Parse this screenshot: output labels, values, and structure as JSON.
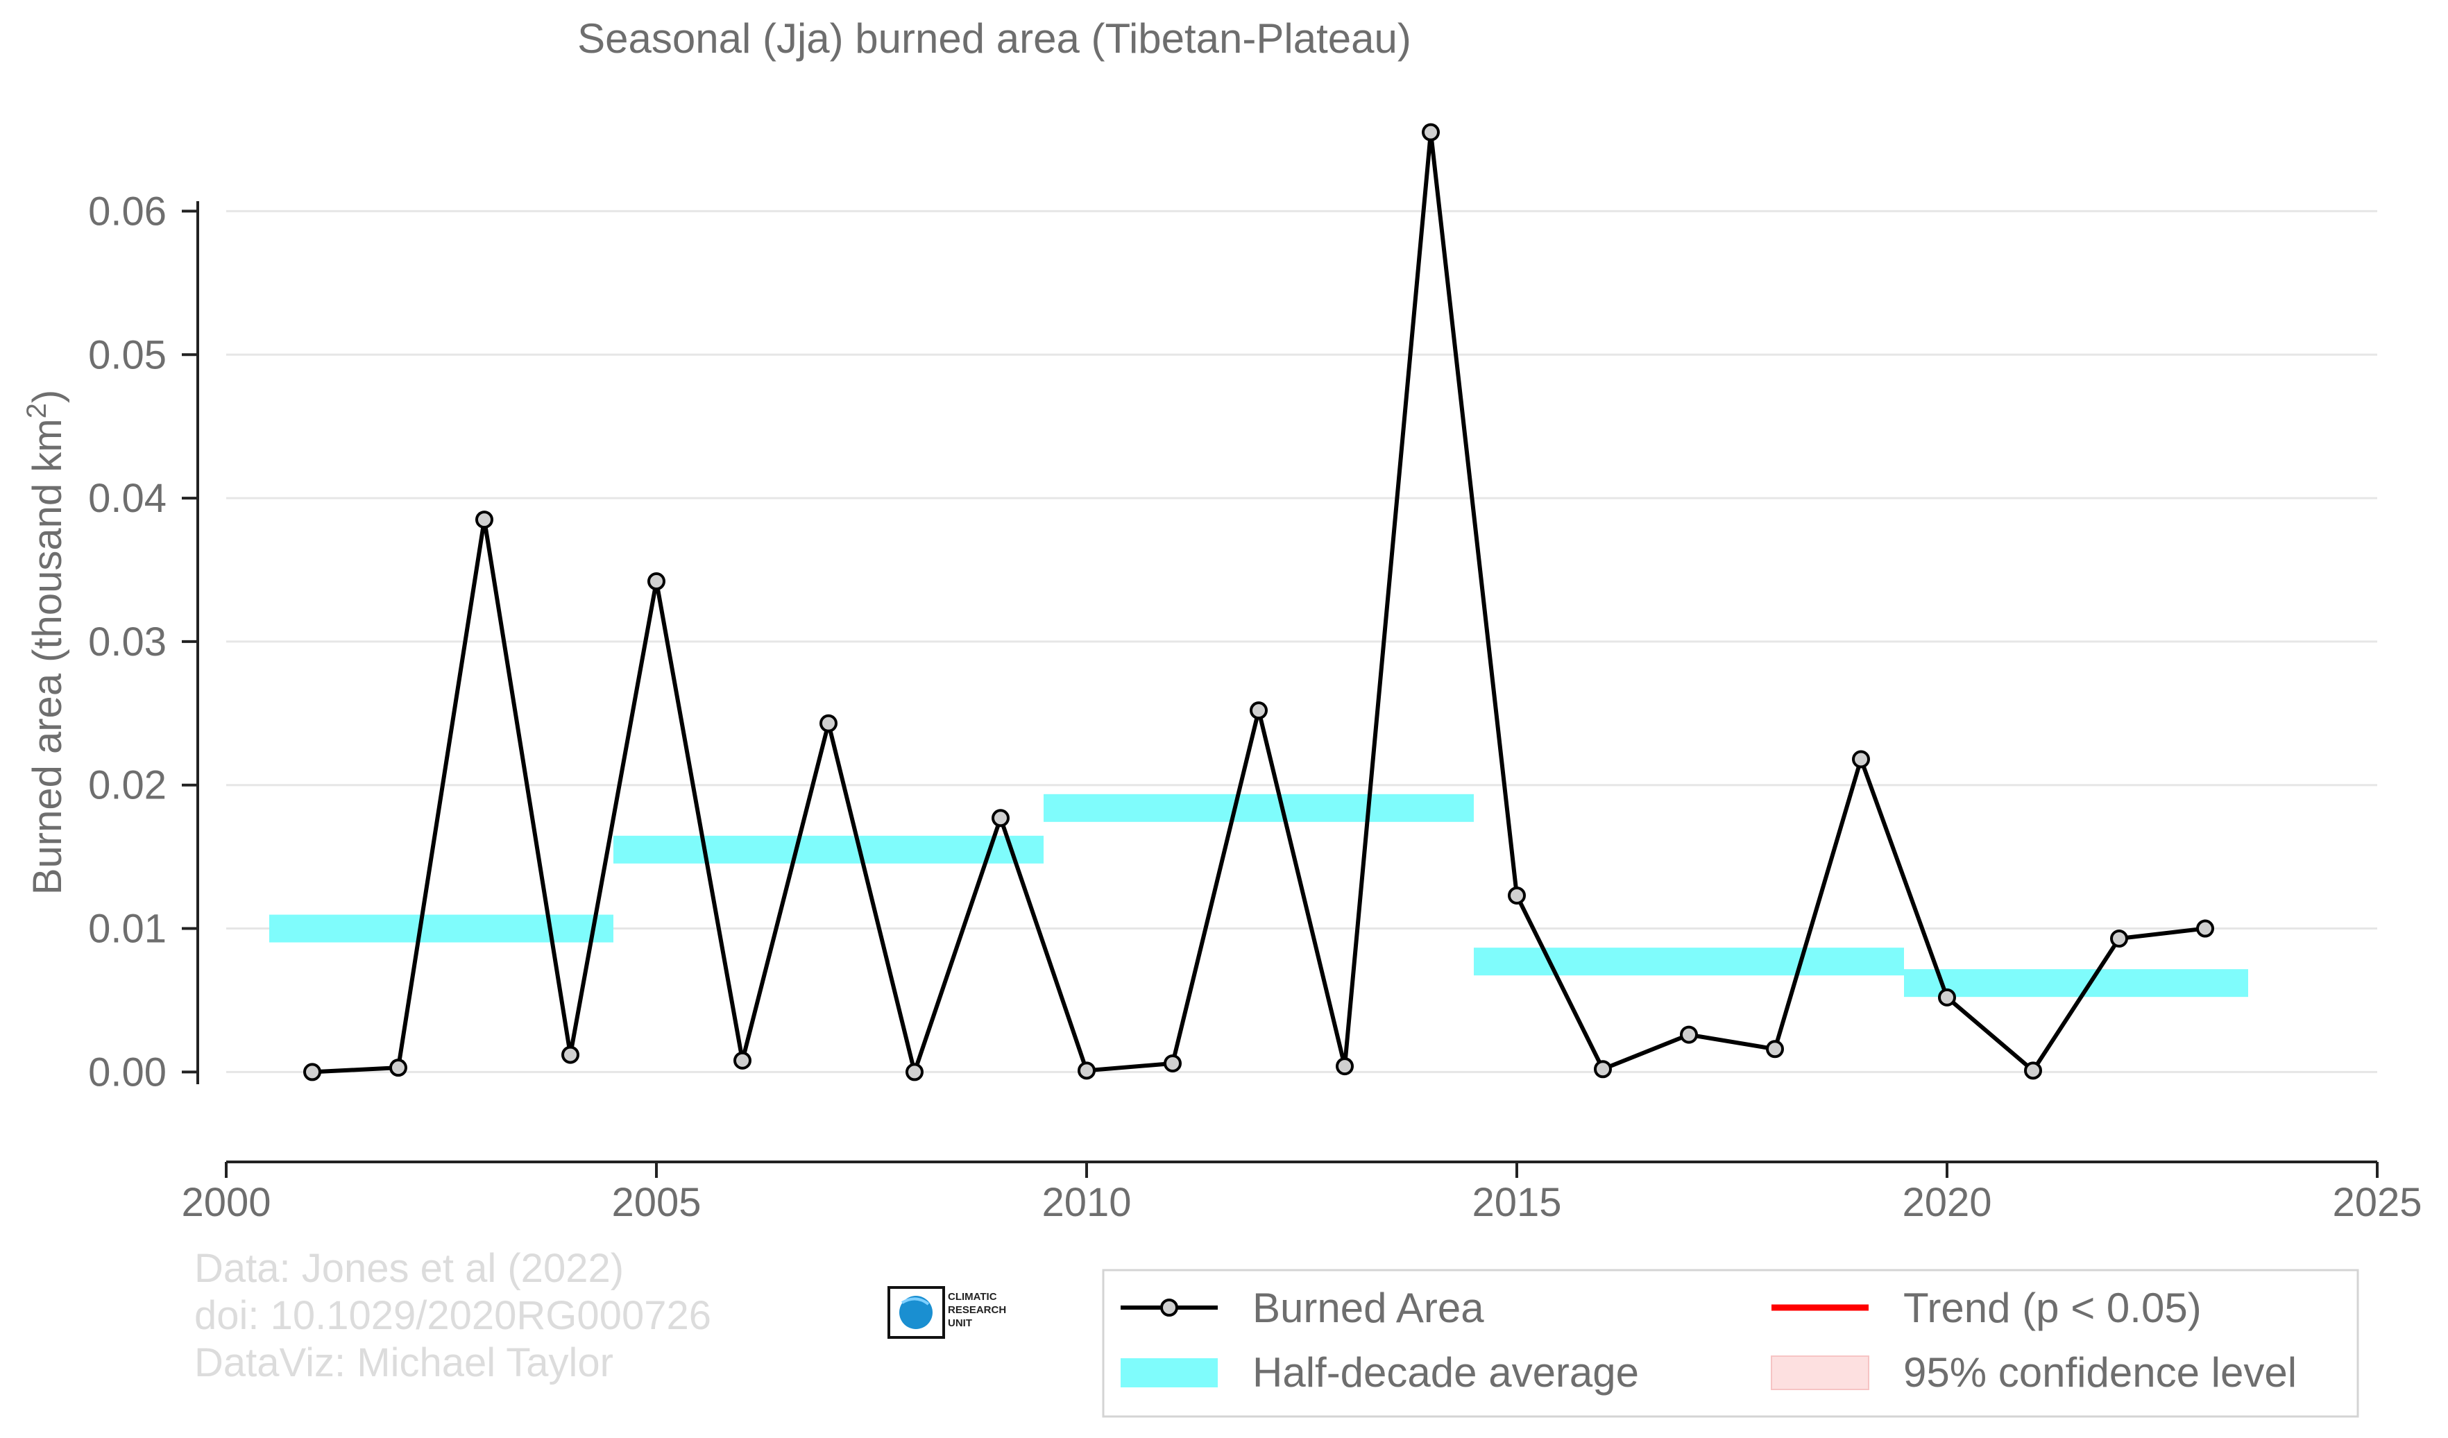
{
  "chart_data": {
    "type": "line",
    "title": "Seasonal (Jja) burned area (Tibetan-Plateau)",
    "xlabel": "",
    "ylabel": "Burned area (thousand km",
    "ylabel_sup": "2",
    "ylabel_close": ")",
    "xlim": [
      2000,
      2025
    ],
    "ylim": [
      -0.0053,
      0.0665
    ],
    "x_ticks": [
      2000,
      2005,
      2010,
      2015,
      2020,
      2025
    ],
    "x_tick_labels": [
      "2000",
      "2005",
      "2010",
      "2015",
      "2020",
      "2025"
    ],
    "y_ticks": [
      0.0,
      0.01,
      0.02,
      0.03,
      0.04,
      0.05,
      0.06
    ],
    "y_tick_labels": [
      "0.00",
      "0.01",
      "0.02",
      "0.03",
      "0.04",
      "0.05",
      "0.06"
    ],
    "grid": true,
    "legend_position": "bottom-right",
    "series": [
      {
        "name": "Burned Area",
        "color": "#000000",
        "marker_fill": "#d0d0d0",
        "x": [
          2001,
          2002,
          2003,
          2004,
          2005,
          2006,
          2007,
          2008,
          2009,
          2010,
          2011,
          2012,
          2013,
          2014,
          2015,
          2016,
          2017,
          2018,
          2019,
          2020,
          2021,
          2022,
          2023
        ],
        "y": [
          0.0,
          0.0003,
          0.0385,
          0.0012,
          0.0342,
          0.0008,
          0.0243,
          0.0,
          0.0177,
          0.0001,
          0.0006,
          0.0252,
          0.0004,
          0.0655,
          0.0123,
          0.0002,
          0.0026,
          0.0016,
          0.0218,
          0.0052,
          0.0001,
          0.0093,
          0.01
        ]
      }
    ],
    "half_decade_average": {
      "name": "Half-decade average",
      "color": "#7ffcfc",
      "segments": [
        {
          "x0": 2000.5,
          "x1": 2004.5,
          "y": 0.01
        },
        {
          "x0": 2004.5,
          "x1": 2009.5,
          "y": 0.0155
        },
        {
          "x0": 2009.5,
          "x1": 2014.5,
          "y": 0.0184
        },
        {
          "x0": 2014.5,
          "x1": 2019.5,
          "y": 0.0077
        },
        {
          "x0": 2019.5,
          "x1": 2023.5,
          "y": 0.0062
        }
      ]
    },
    "legend": [
      {
        "label": "Burned Area",
        "kind": "line-marker",
        "color": "#000000"
      },
      {
        "label": "Trend (p < 0.05)",
        "kind": "line",
        "color": "#ff0000"
      },
      {
        "label": "Half-decade average",
        "kind": "band",
        "color": "#7ffcfc"
      },
      {
        "label": "95% confidence level",
        "kind": "patch",
        "color": "#fde0e0"
      }
    ]
  },
  "credits": {
    "line1": "Data: Jones et al (2022)",
    "line2": "doi: 10.1029/2020RG000726",
    "line3": "DataViz: Michael Taylor"
  },
  "logo": {
    "line1": "CLIMATIC",
    "line2": "RESEARCH",
    "line3": "UNIT"
  }
}
